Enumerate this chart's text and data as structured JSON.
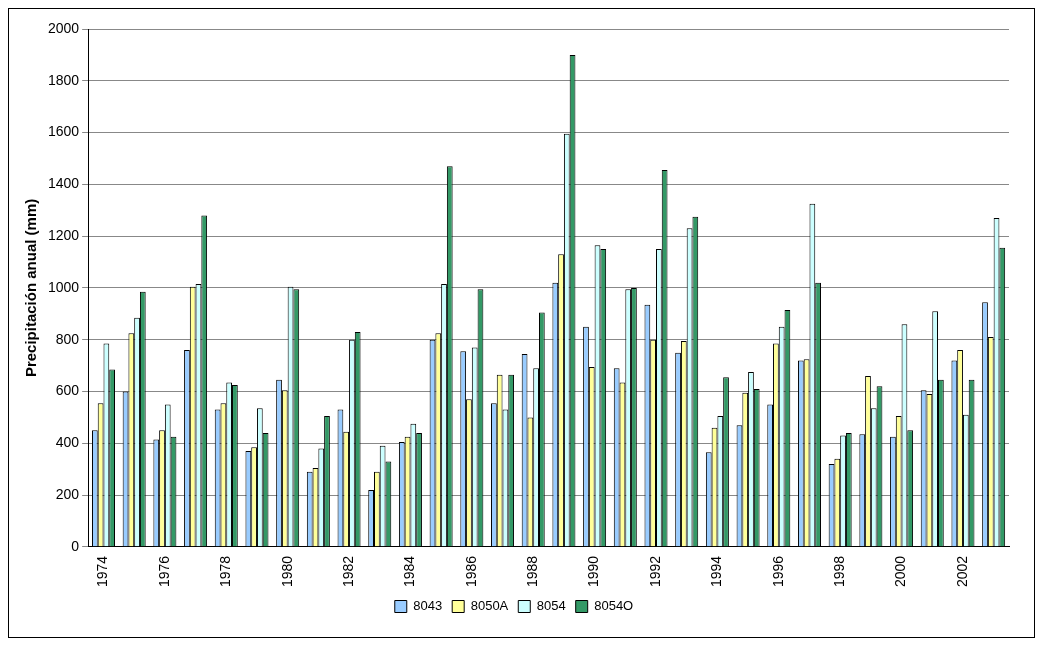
{
  "chart_data": {
    "type": "bar",
    "ylabel": "Precipitación anual (mm)",
    "categories": [
      "1974",
      null,
      "1976",
      null,
      "1978",
      null,
      "1980",
      null,
      "1982",
      null,
      "1984",
      null,
      "1986",
      null,
      "1988",
      null,
      "1990",
      null,
      "1992",
      null,
      "1994",
      null,
      "1996",
      null,
      "1998",
      null,
      "2000",
      null,
      "2002",
      null
    ],
    "ylim": [
      0,
      2000
    ],
    "yticks": [
      0,
      200,
      400,
      600,
      800,
      1000,
      1200,
      1400,
      1600,
      1800,
      2000
    ],
    "grid": "y",
    "legend": "bottom",
    "series": [
      {
        "name": "8043",
        "color": "#99ccff",
        "values": [
          450,
          600,
          415,
          760,
          530,
          370,
          645,
          290,
          530,
          220,
          405,
          800,
          755,
          555,
          745,
          1020,
          850,
          690,
          935,
          750,
          365,
          470,
          550,
          720,
          320,
          435,
          425,
          605,
          720,
          945
        ]
      },
      {
        "name": "8050A",
        "color": "#ffff99",
        "values": [
          555,
          825,
          450,
          1005,
          555,
          385,
          605,
          305,
          445,
          290,
          425,
          825,
          570,
          665,
          500,
          1130,
          695,
          635,
          800,
          795,
          460,
          595,
          785,
          725,
          340,
          660,
          505,
          590,
          760,
          810
        ]
      },
      {
        "name": "8054",
        "color": "#ccffff",
        "values": [
          785,
          885,
          550,
          1015,
          635,
          535,
          1005,
          380,
          800,
          390,
          475,
          1015,
          770,
          530,
          690,
          1595,
          1165,
          995,
          1150,
          1230,
          505,
          675,
          850,
          1325,
          430,
          535,
          860,
          910,
          510,
          1270
        ]
      },
      {
        "name": "8054O",
        "color": "#339966",
        "values": [
          685,
          985,
          425,
          1280,
          625,
          440,
          995,
          505,
          830,
          330,
          440,
          1470,
          995,
          665,
          905,
          1900,
          1150,
          1000,
          1455,
          1275,
          655,
          610,
          915,
          1020,
          440,
          620,
          450,
          645,
          645,
          1155
        ]
      }
    ]
  }
}
